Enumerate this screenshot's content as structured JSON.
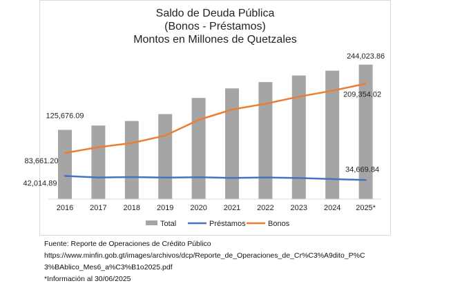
{
  "chart_data": {
    "type": "bar",
    "title": [
      "Saldo de Deuda Pública",
      "(Bonos - Préstamos)",
      "Montos en Millones de Quetzales"
    ],
    "categories": [
      "2016",
      "2017",
      "2018",
      "2019",
      "2020",
      "2021",
      "2022",
      "2023",
      "2024",
      "2025*"
    ],
    "series": [
      {
        "name": "Total",
        "kind": "bar",
        "color": "#a5a5a5",
        "values": [
          125676.09,
          133500,
          141700,
          154200,
          183600,
          200900,
          212300,
          224200,
          233000,
          244023.86
        ]
      },
      {
        "name": "Préstamos",
        "kind": "line",
        "color": "#4472c4",
        "values": [
          42014.89,
          39200,
          40000,
          39000,
          39800,
          38400,
          39300,
          38300,
          36400,
          34669.84
        ]
      },
      {
        "name": "Bonos",
        "kind": "line",
        "color": "#ed7d31",
        "values": [
          83661.2,
          94300,
          101700,
          115200,
          143800,
          162500,
          173000,
          185900,
          196600,
          209354.02
        ]
      }
    ],
    "data_labels": [
      {
        "series": "Total",
        "index": 0,
        "text": "125,676.09"
      },
      {
        "series": "Total",
        "index": 9,
        "text": "244,023.86"
      },
      {
        "series": "Bonos",
        "index": 0,
        "text": "83,661.20"
      },
      {
        "series": "Bonos",
        "index": 9,
        "text": "209,354.02"
      },
      {
        "series": "Préstamos",
        "index": 0,
        "text": "42,014.89"
      },
      {
        "series": "Préstamos",
        "index": 9,
        "text": "34,669.84"
      }
    ],
    "ylim": [
      0,
      260000
    ],
    "y_axis_visible": false,
    "grid": false,
    "legend_position": "bottom"
  },
  "notes": {
    "source": "Fuente: Reporte de Operaciones de Crédito Público",
    "url_line1": "https://www.minfin.gob.gt/images/archivos/dcp/Reporte_de_Operaciones_de_Cr%C3%A9dito_P%C",
    "url_line2": "3%BAblico_Mes6_a%C3%B1o2025.pdf",
    "footnote": "*Información al 30/06/2025"
  }
}
